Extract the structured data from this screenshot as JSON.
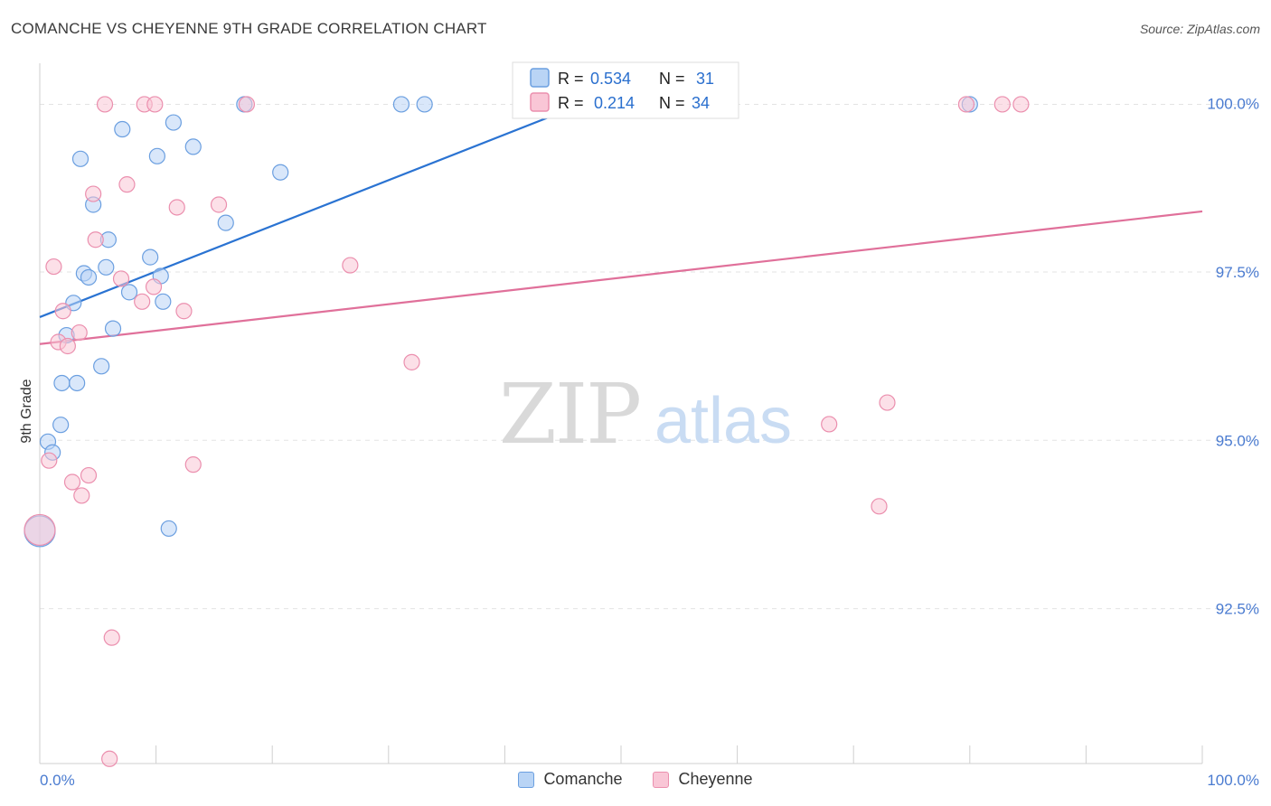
{
  "title": "COMANCHE VS CHEYENNE 9TH GRADE CORRELATION CHART",
  "source": "Source: ZipAtlas.com",
  "watermark": {
    "zip": "ZIP",
    "atlas": "atlas"
  },
  "colors": {
    "comanche_fill": "#b9d4f5",
    "comanche_stroke": "#6b9fe0",
    "comanche_line": "#2a73d2",
    "cheyenne_fill": "#f9c6d6",
    "cheyenne_stroke": "#eb8fae",
    "cheyenne_line": "#e0709a",
    "tick_label": "#4a7bd0",
    "grid": "#e3e3e3"
  },
  "legend_stats": [
    {
      "r_label": "R =",
      "r_value": "0.534",
      "n_label": "N =",
      "n_value": "31"
    },
    {
      "r_label": "R =",
      "r_value": "0.214",
      "n_label": "N =",
      "n_value": "34"
    }
  ],
  "chart_data": {
    "type": "scatter",
    "title": "COMANCHE VS CHEYENNE 9TH GRADE CORRELATION CHART",
    "xlabel": "",
    "ylabel": "9th Grade",
    "xlim": [
      0,
      100
    ],
    "ylim": [
      90.2,
      100.6
    ],
    "x_tick_labels": [
      "0.0%",
      "100.0%"
    ],
    "y_ticks": [
      100.0,
      97.5,
      95.0,
      92.5
    ],
    "y_tick_labels": [
      "100.0%",
      "97.5%",
      "95.0%",
      "92.5%"
    ],
    "legend_position": "bottom-center",
    "series": [
      {
        "name": "Comanche",
        "r": 0.534,
        "n": 31,
        "trend": {
          "x0": 0,
          "y0": 96.83,
          "x1": 47.5,
          "y1": 100.05
        },
        "points": [
          {
            "x": 0.0,
            "y": 93.65,
            "big": true
          },
          {
            "x": 0.7,
            "y": 94.98
          },
          {
            "x": 1.1,
            "y": 94.82
          },
          {
            "x": 1.9,
            "y": 95.85
          },
          {
            "x": 1.8,
            "y": 95.23
          },
          {
            "x": 3.2,
            "y": 95.85
          },
          {
            "x": 5.3,
            "y": 96.1
          },
          {
            "x": 2.3,
            "y": 96.56
          },
          {
            "x": 2.9,
            "y": 97.04
          },
          {
            "x": 3.8,
            "y": 97.48
          },
          {
            "x": 4.2,
            "y": 97.42
          },
          {
            "x": 5.7,
            "y": 97.57
          },
          {
            "x": 6.3,
            "y": 96.66
          },
          {
            "x": 7.7,
            "y": 97.2
          },
          {
            "x": 9.5,
            "y": 97.72
          },
          {
            "x": 10.4,
            "y": 97.44
          },
          {
            "x": 10.6,
            "y": 97.06
          },
          {
            "x": 4.6,
            "y": 98.5
          },
          {
            "x": 5.9,
            "y": 97.98
          },
          {
            "x": 7.1,
            "y": 99.62
          },
          {
            "x": 3.5,
            "y": 99.18
          },
          {
            "x": 10.1,
            "y": 99.22
          },
          {
            "x": 11.5,
            "y": 99.72
          },
          {
            "x": 13.2,
            "y": 99.36
          },
          {
            "x": 16.0,
            "y": 98.23
          },
          {
            "x": 20.7,
            "y": 98.98
          },
          {
            "x": 11.1,
            "y": 93.69
          },
          {
            "x": 17.6,
            "y": 99.99
          },
          {
            "x": 31.1,
            "y": 99.99
          },
          {
            "x": 33.1,
            "y": 99.99
          },
          {
            "x": 80.0,
            "y": 99.99
          }
        ]
      },
      {
        "name": "Cheyenne",
        "r": 0.214,
        "n": 34,
        "trend": {
          "x0": 0,
          "y0": 96.43,
          "x1": 100,
          "y1": 98.4
        },
        "points": [
          {
            "x": 0.0,
            "y": 93.67,
            "big": true
          },
          {
            "x": 0.8,
            "y": 94.7
          },
          {
            "x": 1.2,
            "y": 97.58
          },
          {
            "x": 1.6,
            "y": 96.46
          },
          {
            "x": 2.0,
            "y": 96.92
          },
          {
            "x": 2.4,
            "y": 96.4
          },
          {
            "x": 2.8,
            "y": 94.38
          },
          {
            "x": 3.4,
            "y": 96.6
          },
          {
            "x": 3.6,
            "y": 94.18
          },
          {
            "x": 4.2,
            "y": 94.48
          },
          {
            "x": 4.6,
            "y": 98.66
          },
          {
            "x": 4.8,
            "y": 97.98
          },
          {
            "x": 5.6,
            "y": 99.99
          },
          {
            "x": 6.2,
            "y": 92.07
          },
          {
            "x": 6.0,
            "y": 90.27
          },
          {
            "x": 7.0,
            "y": 97.4
          },
          {
            "x": 7.5,
            "y": 98.8
          },
          {
            "x": 8.8,
            "y": 97.06
          },
          {
            "x": 9.0,
            "y": 99.99
          },
          {
            "x": 9.9,
            "y": 99.99
          },
          {
            "x": 9.8,
            "y": 97.28
          },
          {
            "x": 11.8,
            "y": 98.46
          },
          {
            "x": 12.4,
            "y": 96.92
          },
          {
            "x": 13.2,
            "y": 94.64
          },
          {
            "x": 15.4,
            "y": 98.5
          },
          {
            "x": 17.8,
            "y": 99.99
          },
          {
            "x": 26.7,
            "y": 97.6
          },
          {
            "x": 32.0,
            "y": 96.16
          },
          {
            "x": 67.9,
            "y": 95.24
          },
          {
            "x": 72.2,
            "y": 94.02
          },
          {
            "x": 72.9,
            "y": 95.56
          },
          {
            "x": 79.7,
            "y": 99.99
          },
          {
            "x": 82.8,
            "y": 99.99
          },
          {
            "x": 84.4,
            "y": 99.99
          }
        ]
      }
    ]
  }
}
